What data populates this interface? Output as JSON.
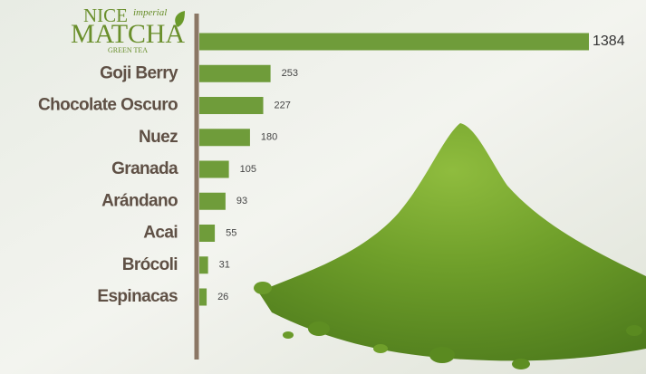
{
  "logo": {
    "top": "NICE",
    "script": "imperial",
    "main": "MATCHA",
    "sub": "GREEN TEA"
  },
  "chart_data": {
    "type": "bar",
    "orientation": "horizontal",
    "categories": [
      null,
      "Goji Berry",
      "Chocolate Oscuro",
      "Nuez",
      "Granada",
      "Arándano",
      "Acai",
      "Brócoli",
      "Espinacas"
    ],
    "values": [
      1384,
      253,
      227,
      180,
      105,
      93,
      55,
      31,
      26
    ],
    "color": "#6f9c3a",
    "xlim": [
      0,
      1384
    ]
  }
}
